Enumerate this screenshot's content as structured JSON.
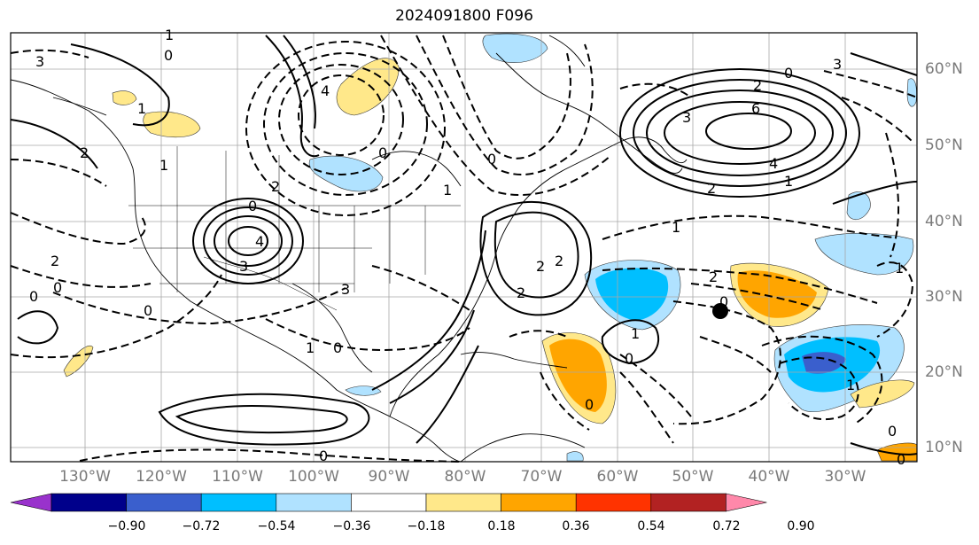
{
  "title": "2024091800 F096",
  "lon_labels": [
    "130°W",
    "120°W",
    "110°W",
    "100°W",
    "90°W",
    "80°W",
    "70°W",
    "60°W",
    "50°W",
    "40°W",
    "30°W"
  ],
  "lat_labels": [
    "60°N",
    "50°N",
    "40°N",
    "30°N",
    "20°N",
    "10°N"
  ],
  "colorbar": {
    "labels": [
      "−0.90",
      "−0.72",
      "−0.54",
      "−0.36",
      "−0.18",
      "0.18",
      "0.36",
      "0.54",
      "0.72",
      "0.90"
    ],
    "colors": [
      "#9932CC",
      "#00008B",
      "#3A5FCD",
      "#00BFFF",
      "#B0E2FF",
      "#FFFFFF",
      "#FFE88A",
      "#FFA500",
      "#FF3300",
      "#B22222",
      "#FF88AA"
    ]
  },
  "contour_labels": [
    "3",
    "0",
    "4",
    "2",
    "0",
    "3",
    "2",
    "0",
    "6",
    "4",
    "1",
    "2",
    "1",
    "2",
    "1",
    "0",
    "4",
    "3",
    "3",
    "0",
    "2",
    "0",
    "1",
    "2",
    "2",
    "0",
    "0",
    "1",
    "0",
    "3",
    "0",
    "2",
    "1",
    "2",
    "1",
    "0",
    "0",
    "1",
    "0",
    "0",
    "1",
    "1",
    "0"
  ],
  "marker": "storm-position-dot"
}
